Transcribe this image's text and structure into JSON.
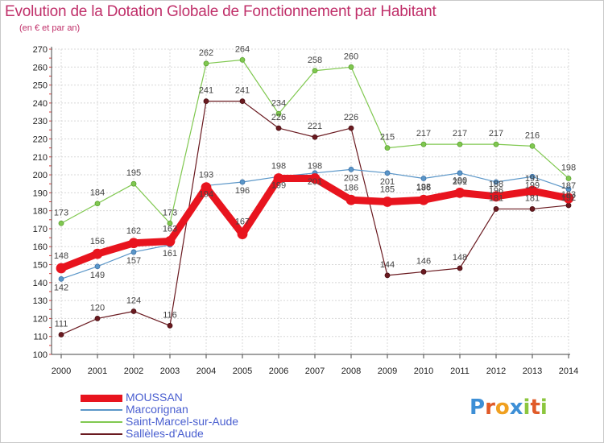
{
  "title": "Evolution de la Dotation Globale de Fonctionnement par Habitant",
  "subtitle": "(en € et par an)",
  "logo_text": "Proxiti",
  "chart_data": {
    "type": "line",
    "title": "Evolution de la Dotation Globale de Fonctionnement par Habitant",
    "subtitle": "(en € et par an)",
    "xlabel": "",
    "ylabel": "",
    "x": [
      "2000",
      "2001",
      "2002",
      "2003",
      "2004",
      "2005",
      "2006",
      "2007",
      "2008",
      "2009",
      "2010",
      "2011",
      "2012",
      "2013",
      "2014"
    ],
    "ylim": [
      100,
      270
    ],
    "yticks": [
      100,
      110,
      120,
      130,
      140,
      150,
      160,
      170,
      180,
      190,
      200,
      210,
      220,
      230,
      240,
      250,
      260,
      270
    ],
    "grid": true,
    "legend_position": "bottom-left",
    "series": [
      {
        "name": "MOUSSAN",
        "color": "#e8141e",
        "values": [
          148,
          156,
          162,
          163,
          193,
          167,
          198,
          198,
          186,
          185,
          186,
          190,
          188,
          191,
          187
        ]
      },
      {
        "name": "Marcorignan",
        "color": "#5a96c8",
        "values": [
          142,
          149,
          157,
          161,
          194,
          196,
          199,
          201,
          203,
          201,
          198,
          201,
          196,
          199,
          192
        ]
      },
      {
        "name": "Saint-Marcel-sur-Aude",
        "color": "#80c850",
        "values": [
          173,
          184,
          195,
          173,
          262,
          264,
          234,
          258,
          260,
          215,
          217,
          217,
          217,
          216,
          198
        ]
      },
      {
        "name": "Sallèles-d'Aude",
        "color": "#6a1a20",
        "values": [
          111,
          120,
          124,
          116,
          241,
          241,
          226,
          221,
          226,
          144,
          146,
          148,
          181,
          181,
          183
        ]
      }
    ]
  }
}
